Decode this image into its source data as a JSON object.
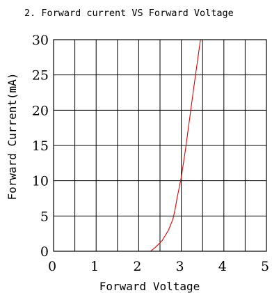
{
  "chart_data": {
    "type": "line",
    "title": "2. Forward current VS Forward Voltage",
    "xlabel": "Forward Voltage",
    "ylabel": "Forward Current(mA)",
    "xlim": [
      0,
      5
    ],
    "ylim": [
      0,
      30
    ],
    "x_ticks": [
      0,
      1,
      2,
      3,
      4,
      5
    ],
    "x_tick_labels": [
      "0",
      "1",
      "2",
      "3",
      "4",
      "5"
    ],
    "y_ticks": [
      0,
      5,
      10,
      15,
      20,
      25,
      30
    ],
    "y_tick_labels": [
      "0",
      "5",
      "10",
      "15",
      "20",
      "25",
      "30"
    ],
    "x_grid_step": 0.5,
    "y_grid_step": 5,
    "grid": true,
    "series": [
      {
        "color": "#e00000",
        "x": [
          2.28,
          2.4,
          2.55,
          2.7,
          2.8,
          2.85,
          2.9,
          2.95,
          3.0,
          3.1,
          3.2,
          3.3,
          3.45
        ],
        "y": [
          0,
          0.6,
          1.5,
          3.0,
          4.5,
          5.8,
          7.5,
          9.0,
          10.5,
          14.5,
          19.0,
          23.5,
          30
        ]
      }
    ]
  }
}
